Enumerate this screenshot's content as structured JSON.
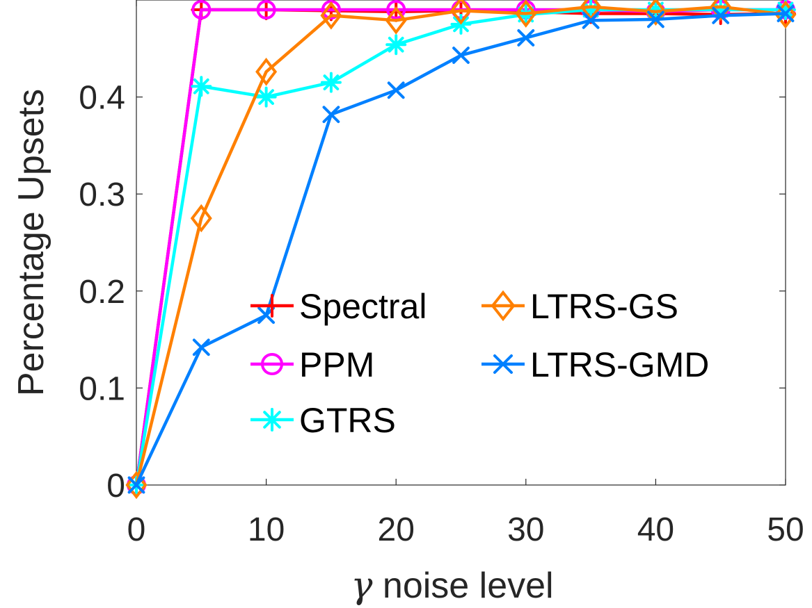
{
  "chart_data": {
    "type": "line",
    "title": "",
    "xlabel_symbol": "γ",
    "xlabel_text": " noise level",
    "ylabel": "Percentage Upsets",
    "xlim": [
      0,
      50
    ],
    "ylim": [
      0,
      0.5
    ],
    "xticks": [
      0,
      10,
      20,
      30,
      40,
      50
    ],
    "xtick_labels": [
      "0",
      "10",
      "20",
      "30",
      "40",
      "50"
    ],
    "yticks": [
      0,
      0.1,
      0.2,
      0.3,
      0.4
    ],
    "ytick_labels": [
      "0",
      "0.1",
      "0.2",
      "0.3",
      "0.4"
    ],
    "grid": false,
    "legend_placement": "center-bottom",
    "x": [
      0,
      5,
      10,
      15,
      20,
      25,
      30,
      35,
      40,
      45,
      50
    ],
    "series": [
      {
        "name": "Spectral",
        "color": "#ff0000",
        "marker": "plus",
        "values": [
          0,
          0.49,
          0.49,
          0.489,
          0.488,
          0.489,
          0.488,
          0.486,
          0.486,
          0.485,
          0.486
        ]
      },
      {
        "name": "PPM",
        "color": "#ff00ff",
        "marker": "circle",
        "values": [
          0,
          0.49,
          0.49,
          0.49,
          0.49,
          0.49,
          0.49,
          0.49,
          0.488,
          0.49,
          0.49
        ]
      },
      {
        "name": "GTRS",
        "color": "#00ffff",
        "marker": "asterisk",
        "values": [
          0,
          0.411,
          0.4,
          0.415,
          0.454,
          0.475,
          0.485,
          0.49,
          0.49,
          0.49,
          0.49
        ]
      },
      {
        "name": "LTRS-GS",
        "color": "#ff8000",
        "marker": "diamond",
        "values": [
          0,
          0.275,
          0.426,
          0.484,
          0.479,
          0.489,
          0.486,
          0.493,
          0.488,
          0.493,
          0.485
        ]
      },
      {
        "name": "LTRS-GMD",
        "color": "#0080ff",
        "marker": "x",
        "values": [
          0,
          0.142,
          0.175,
          0.382,
          0.407,
          0.443,
          0.461,
          0.479,
          0.48,
          0.484,
          0.486
        ]
      }
    ]
  }
}
